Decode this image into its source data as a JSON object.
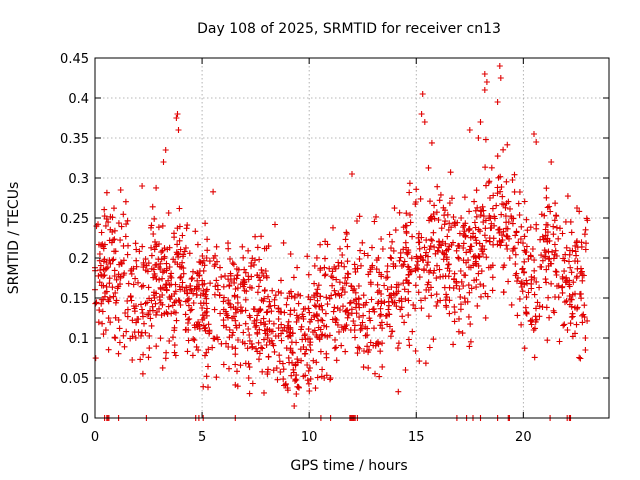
{
  "chart_data": {
    "type": "scatter",
    "title": "Day 108 of 2025, SRMTID for receiver cn13",
    "xlabel": "GPS time / hours",
    "ylabel": "SRMTID / TECUs",
    "xlim": [
      0,
      24
    ],
    "ylim": [
      0,
      0.45
    ],
    "xticks": [
      0,
      5,
      10,
      15,
      20
    ],
    "yticks": [
      0,
      0.05,
      0.1,
      0.15,
      0.2,
      0.25,
      0.3,
      0.35,
      0.4,
      0.45
    ],
    "xtick_labels": [
      "0",
      "5",
      "10",
      "15",
      "20"
    ],
    "ytick_labels": [
      "0",
      "0.05",
      "0.1",
      "0.15",
      "0.2",
      "0.25",
      "0.3",
      "0.35",
      "0.4",
      "0.45"
    ],
    "grid": true,
    "marker": "+",
    "color": "#e00000",
    "trend": [
      [
        0.0,
        0.19
      ],
      [
        0.5,
        0.18
      ],
      [
        1.0,
        0.17
      ],
      [
        1.5,
        0.17
      ],
      [
        2.0,
        0.16
      ],
      [
        2.5,
        0.15
      ],
      [
        3.0,
        0.18
      ],
      [
        3.5,
        0.16
      ],
      [
        4.0,
        0.17
      ],
      [
        4.5,
        0.16
      ],
      [
        5.0,
        0.15
      ],
      [
        5.5,
        0.15
      ],
      [
        6.0,
        0.14
      ],
      [
        6.5,
        0.13
      ],
      [
        7.0,
        0.14
      ],
      [
        7.5,
        0.13
      ],
      [
        8.0,
        0.12
      ],
      [
        8.5,
        0.11
      ],
      [
        9.0,
        0.105
      ],
      [
        9.5,
        0.09
      ],
      [
        10.0,
        0.11
      ],
      [
        10.5,
        0.13
      ],
      [
        11.0,
        0.13
      ],
      [
        11.5,
        0.15
      ],
      [
        12.0,
        0.15
      ],
      [
        12.5,
        0.14
      ],
      [
        13.0,
        0.15
      ],
      [
        13.5,
        0.16
      ],
      [
        14.0,
        0.17
      ],
      [
        14.5,
        0.19
      ],
      [
        15.0,
        0.2
      ],
      [
        15.5,
        0.21
      ],
      [
        16.0,
        0.21
      ],
      [
        16.5,
        0.2
      ],
      [
        17.0,
        0.2
      ],
      [
        17.5,
        0.2
      ],
      [
        18.0,
        0.22
      ],
      [
        18.5,
        0.24
      ],
      [
        19.0,
        0.24
      ],
      [
        19.5,
        0.23
      ],
      [
        20.0,
        0.18
      ],
      [
        20.5,
        0.17
      ],
      [
        21.0,
        0.2
      ],
      [
        21.5,
        0.2
      ],
      [
        22.0,
        0.18
      ],
      [
        22.5,
        0.17
      ],
      [
        23.0,
        0.17
      ]
    ],
    "scatter_spread": 0.045,
    "points_per_hour": 75,
    "outliers": [
      [
        3.85,
        0.38
      ],
      [
        3.8,
        0.375
      ],
      [
        3.9,
        0.36
      ],
      [
        3.3,
        0.335
      ],
      [
        3.2,
        0.32
      ],
      [
        2.2,
        0.29
      ],
      [
        1.2,
        0.285
      ],
      [
        12.0,
        0.305
      ],
      [
        15.3,
        0.405
      ],
      [
        15.25,
        0.38
      ],
      [
        15.4,
        0.37
      ],
      [
        17.5,
        0.36
      ],
      [
        18.0,
        0.37
      ],
      [
        18.2,
        0.41
      ],
      [
        18.2,
        0.43
      ],
      [
        18.3,
        0.42
      ],
      [
        18.8,
        0.395
      ],
      [
        18.9,
        0.44
      ],
      [
        18.95,
        0.425
      ],
      [
        17.9,
        0.35
      ],
      [
        20.5,
        0.355
      ],
      [
        20.6,
        0.345
      ],
      [
        9.3,
        0.015
      ],
      [
        9.4,
        0.03
      ],
      [
        11.0,
        0.05
      ],
      [
        14.5,
        0.06
      ],
      [
        10.7,
        0.05
      ],
      [
        22.9,
        0.085
      ],
      [
        22.9,
        0.1
      ],
      [
        21.3,
        0.32
      ]
    ],
    "zero_band_hours": [
      0.45,
      0.55,
      0.6,
      0.65,
      1.1,
      2.4,
      4.7,
      4.85,
      5.05,
      6.55,
      10.55,
      11.0,
      11.9,
      11.95,
      12.0,
      12.05,
      12.1,
      12.15,
      12.25,
      16.9,
      17.35,
      17.65,
      18.0,
      18.8,
      19.3,
      19.35,
      21.25,
      22.05,
      22.15,
      22.2
    ]
  }
}
